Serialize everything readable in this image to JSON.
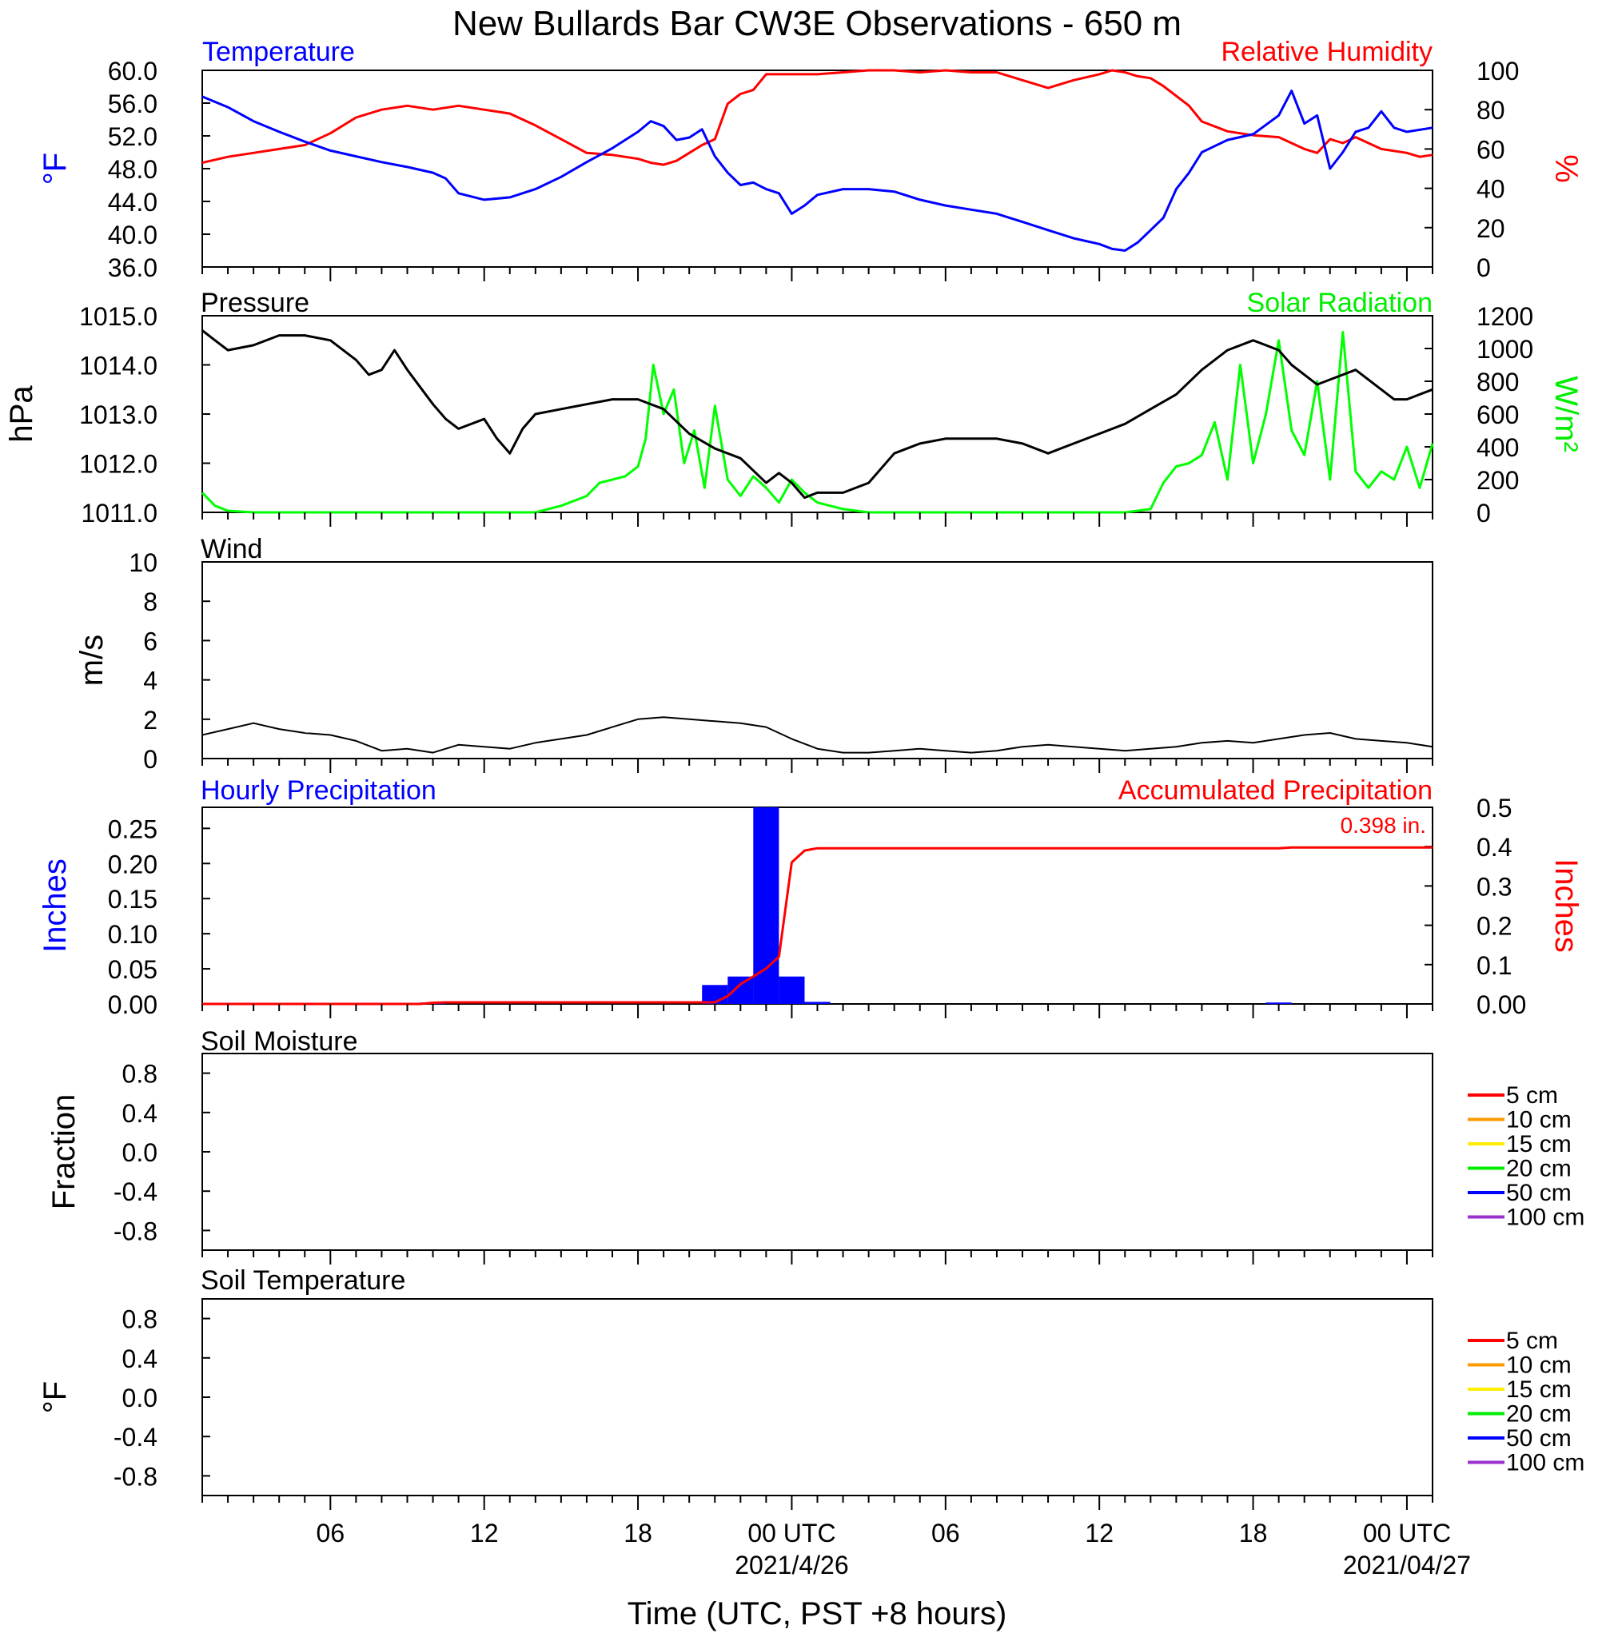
{
  "title": "New Bullards Bar CW3E Observations - 650 m",
  "colors": {
    "temperature": "#0000ff",
    "humidity": "#ff0000",
    "pressure": "#000000",
    "solar": "#00ff00",
    "wind": "#000000",
    "wind_barb": "#ff0000",
    "hourly_precip": "#0000ff",
    "accum_precip": "#ff0000"
  },
  "time_axis": {
    "tick_labels": [
      "06",
      "12",
      "18",
      "00 UTC",
      "06",
      "12",
      "18",
      "00 UTC"
    ],
    "tick_hours": [
      6,
      12,
      18,
      24,
      30,
      36,
      42,
      48
    ],
    "date_labels": [
      "2021/4/26",
      "2021/04/27"
    ],
    "date_hours": [
      24,
      48
    ],
    "xlabel": "Time (UTC, PST +8 hours)"
  },
  "chart_data": [
    {
      "type": "line",
      "panel": "temperature-humidity",
      "title_left": "Temperature",
      "title_right": "Relative Humidity",
      "ylabel_left": "°F",
      "ylabel_right": "%",
      "ylim_left": [
        36,
        60
      ],
      "ylim_right": [
        0,
        100
      ],
      "yticks_left": [
        "60.0",
        "56.0",
        "52.0",
        "48.0",
        "44.0",
        "40.0",
        "36.0"
      ],
      "yticks_right": [
        "100",
        "80",
        "60",
        "40",
        "20",
        "0"
      ],
      "xlim_hours": [
        1,
        49
      ],
      "series": [
        {
          "name": "Temperature",
          "axis": "left",
          "x": [
            1,
            2,
            3,
            4,
            5,
            6,
            7,
            8,
            9,
            10,
            10.5,
            11,
            12,
            13,
            14,
            15,
            16,
            17,
            18,
            18.5,
            19,
            19.5,
            20,
            20.5,
            21,
            21.5,
            22,
            22.5,
            23,
            23.5,
            24,
            24.5,
            25,
            26,
            27,
            28,
            29,
            30,
            31,
            32,
            33,
            34,
            35,
            36,
            36.5,
            37,
            37.5,
            38,
            38.5,
            39,
            39.5,
            40,
            41,
            42,
            43,
            43.5,
            44,
            44.5,
            45,
            45.5,
            46,
            46.5,
            47,
            47.5,
            48,
            49
          ],
          "values": [
            56.8,
            55.5,
            53.8,
            52.5,
            51.3,
            50.2,
            49.5,
            48.8,
            48.2,
            47.5,
            46.8,
            45.0,
            44.2,
            44.5,
            45.5,
            47.0,
            48.8,
            50.5,
            52.5,
            53.8,
            53.2,
            51.5,
            51.8,
            52.8,
            49.5,
            47.5,
            46.0,
            46.3,
            45.5,
            45.0,
            42.5,
            43.5,
            44.8,
            45.5,
            45.5,
            45.2,
            44.2,
            43.5,
            43.0,
            42.5,
            41.5,
            40.5,
            39.5,
            38.8,
            38.2,
            38.0,
            39.0,
            40.5,
            42.0,
            45.5,
            47.5,
            50.0,
            51.5,
            52.2,
            54.5,
            57.5,
            53.5,
            54.5,
            48.0,
            50.0,
            52.5,
            53.0,
            55.0,
            53.0,
            52.5,
            53.0
          ]
        },
        {
          "name": "Relative Humidity",
          "axis": "right",
          "x": [
            1,
            2,
            3,
            4,
            5,
            6,
            7,
            8,
            9,
            10,
            11,
            12,
            13,
            14,
            15,
            16,
            17,
            18,
            18.5,
            19,
            19.5,
            20,
            20.5,
            21,
            21.5,
            22,
            22.5,
            23,
            24,
            25,
            26,
            27,
            28,
            29,
            30,
            31,
            32,
            33,
            34,
            35,
            36,
            36.5,
            37,
            37.5,
            38,
            38.5,
            39,
            39.5,
            40,
            41,
            42,
            43,
            44,
            44.5,
            45,
            45.5,
            46,
            47,
            48,
            48.5,
            49
          ],
          "values": [
            53,
            56,
            58,
            60,
            62,
            68,
            76,
            80,
            82,
            80,
            82,
            80,
            78,
            72,
            65,
            58,
            57,
            55,
            53,
            52,
            54,
            58,
            62,
            65,
            83,
            88,
            90,
            98,
            98,
            98,
            99,
            100,
            100,
            99,
            100,
            99,
            99,
            95,
            91,
            95,
            98,
            100,
            99,
            97,
            96,
            92,
            87,
            82,
            74,
            69,
            67,
            66,
            60,
            58,
            65,
            63,
            66,
            60,
            58,
            56,
            57
          ]
        }
      ]
    },
    {
      "type": "line",
      "panel": "pressure-solar",
      "title_left": "Pressure",
      "title_right": "Solar Radiation",
      "ylabel_left": "hPa",
      "ylabel_right": "W/m²",
      "ylim_left": [
        1011,
        1015
      ],
      "ylim_right": [
        0,
        1200
      ],
      "yticks_left": [
        "1015.0",
        "1014.0",
        "1013.0",
        "1012.0",
        "1011.0"
      ],
      "yticks_right": [
        "1200",
        "1000",
        "800",
        "600",
        "400",
        "200",
        "0"
      ],
      "xlim_hours": [
        1,
        49
      ],
      "series": [
        {
          "name": "Pressure",
          "axis": "left",
          "x": [
            1,
            1.5,
            2,
            3,
            4,
            5,
            6,
            7,
            7.5,
            8,
            8.5,
            9,
            10,
            10.5,
            11,
            12,
            12.5,
            13,
            13.5,
            14,
            15,
            16,
            17,
            18,
            19,
            20,
            21,
            22,
            23,
            23.5,
            24,
            24.5,
            25,
            26,
            27,
            28,
            29,
            30,
            31,
            32,
            33,
            34,
            35,
            36,
            37,
            38,
            39,
            40,
            41,
            42,
            42.5,
            43,
            43.5,
            44,
            44.5,
            45,
            46,
            47,
            47.5,
            48,
            49
          ],
          "values": [
            1014.7,
            1014.5,
            1014.3,
            1014.4,
            1014.6,
            1014.6,
            1014.5,
            1014.1,
            1013.8,
            1013.9,
            1014.3,
            1013.9,
            1013.2,
            1012.9,
            1012.7,
            1012.9,
            1012.5,
            1012.2,
            1012.7,
            1013.0,
            1013.1,
            1013.2,
            1013.3,
            1013.3,
            1013.1,
            1012.6,
            1012.3,
            1012.1,
            1011.6,
            1011.8,
            1011.6,
            1011.3,
            1011.4,
            1011.4,
            1011.6,
            1012.2,
            1012.4,
            1012.5,
            1012.5,
            1012.5,
            1012.4,
            1012.2,
            1012.4,
            1012.6,
            1012.8,
            1013.1,
            1013.4,
            1013.9,
            1014.3,
            1014.5,
            1014.4,
            1014.3,
            1014.0,
            1013.8,
            1013.6,
            1013.7,
            1013.9,
            1013.5,
            1013.3,
            1013.3,
            1013.5
          ]
        },
        {
          "name": "Solar Radiation",
          "axis": "right",
          "x": [
            1,
            1.5,
            2,
            3,
            4,
            6,
            8,
            10,
            12,
            13,
            14,
            15,
            16,
            16.5,
            17,
            17.5,
            18,
            18.3,
            18.6,
            19,
            19.4,
            19.8,
            20.2,
            20.6,
            21,
            21.5,
            22,
            22.5,
            23,
            23.5,
            24,
            24.5,
            25,
            26,
            27,
            28,
            30,
            32,
            34,
            36,
            37,
            38,
            38.5,
            39,
            39.5,
            40,
            40.5,
            41,
            41.5,
            42,
            42.5,
            43,
            43.5,
            44,
            44.5,
            45,
            45.5,
            46,
            46.5,
            47,
            47.5,
            48,
            48.5,
            49
          ],
          "values": [
            120,
            40,
            10,
            0,
            0,
            0,
            0,
            0,
            0,
            0,
            0,
            40,
            100,
            180,
            200,
            220,
            280,
            450,
            900,
            600,
            750,
            300,
            500,
            150,
            650,
            200,
            100,
            220,
            150,
            60,
            200,
            120,
            60,
            20,
            0,
            0,
            0,
            0,
            0,
            0,
            0,
            20,
            180,
            280,
            300,
            350,
            550,
            200,
            900,
            300,
            600,
            1050,
            500,
            350,
            800,
            200,
            1100,
            250,
            150,
            250,
            200,
            400,
            150,
            420
          ]
        }
      ]
    },
    {
      "type": "line",
      "panel": "wind",
      "title": "Wind",
      "ylabel": "m/s",
      "ylim": [
        0,
        10
      ],
      "yticks": [
        "10",
        "8",
        "6",
        "4",
        "2",
        "0"
      ],
      "xlim_hours": [
        1,
        49
      ],
      "series": [
        {
          "name": "Wind",
          "x": [
            1,
            2,
            3,
            4,
            5,
            6,
            7,
            8,
            9,
            10,
            11,
            12,
            13,
            14,
            15,
            16,
            17,
            18,
            19,
            20,
            21,
            22,
            23,
            24,
            25,
            26,
            27,
            28,
            29,
            30,
            31,
            32,
            33,
            34,
            35,
            36,
            37,
            38,
            39,
            40,
            41,
            42,
            43,
            44,
            45,
            46,
            47,
            48,
            49
          ],
          "values": [
            1.2,
            1.5,
            1.8,
            1.5,
            1.3,
            1.2,
            0.9,
            0.4,
            0.5,
            0.3,
            0.7,
            0.6,
            0.5,
            0.8,
            1.0,
            1.2,
            1.6,
            2.0,
            2.1,
            2.0,
            1.9,
            1.8,
            1.6,
            1.0,
            0.5,
            0.3,
            0.3,
            0.4,
            0.5,
            0.4,
            0.3,
            0.4,
            0.6,
            0.7,
            0.6,
            0.5,
            0.4,
            0.5,
            0.6,
            0.8,
            0.9,
            0.8,
            1.0,
            1.2,
            1.3,
            1.0,
            0.9,
            0.8,
            0.6
          ]
        }
      ]
    },
    {
      "type": "bar",
      "panel": "precipitation",
      "title_left": "Hourly Precipitation",
      "title_right": "Accumulated Precipitation",
      "annotation": "0.398 in.",
      "ylabel_left": "Inches",
      "ylabel_right": "Inches",
      "ylim_left": [
        0,
        0.28
      ],
      "ylim_right": [
        0,
        0.5
      ],
      "yticks_left": [
        "0.25",
        "0.20",
        "0.15",
        "0.10",
        "0.05",
        "0.00"
      ],
      "yticks_right": [
        "0.5",
        "0.4",
        "0.3",
        "0.2",
        "0.1",
        "0.00"
      ],
      "xlim_hours": [
        1,
        49
      ],
      "series": [
        {
          "name": "Hourly Precipitation",
          "axis": "left",
          "x": [
            10,
            21,
            22,
            23,
            24,
            25,
            43
          ],
          "values": [
            0.002,
            0.027,
            0.039,
            0.28,
            0.039,
            0.003,
            0.002
          ]
        },
        {
          "name": "Accumulated Precipitation",
          "axis": "right",
          "x": [
            1,
            9.5,
            10,
            10.5,
            21,
            21.5,
            22,
            22.5,
            23,
            23.5,
            24,
            24.5,
            25,
            43,
            43.5,
            49
          ],
          "values": [
            0,
            0,
            0.003,
            0.004,
            0.004,
            0.02,
            0.05,
            0.07,
            0.09,
            0.12,
            0.36,
            0.39,
            0.396,
            0.396,
            0.398,
            0.398
          ]
        }
      ]
    },
    {
      "type": "line",
      "panel": "soil-moisture",
      "title": "Soil Moisture",
      "ylabel": "Fraction",
      "ylim": [
        -1,
        1
      ],
      "yticks": [
        "0.8",
        "0.4",
        "0.0",
        "-0.4",
        "-0.8"
      ],
      "legend": [
        "5 cm",
        "10 cm",
        "15 cm",
        "20 cm",
        "50 cm",
        "100 cm"
      ],
      "legend_colors": [
        "#ff0000",
        "#ff9900",
        "#ffee00",
        "#00ee00",
        "#0000ff",
        "#9933cc"
      ],
      "series": []
    },
    {
      "type": "line",
      "panel": "soil-temperature",
      "title": "Soil Temperature",
      "ylabel": "°F",
      "ylim": [
        -1,
        1
      ],
      "yticks": [
        "0.8",
        "0.4",
        "0.0",
        "-0.4",
        "-0.8"
      ],
      "legend": [
        "5 cm",
        "10 cm",
        "15 cm",
        "20 cm",
        "50 cm",
        "100 cm"
      ],
      "legend_colors": [
        "#ff0000",
        "#ff9900",
        "#ffee00",
        "#00ee00",
        "#0000ff",
        "#9933cc"
      ],
      "series": []
    }
  ]
}
